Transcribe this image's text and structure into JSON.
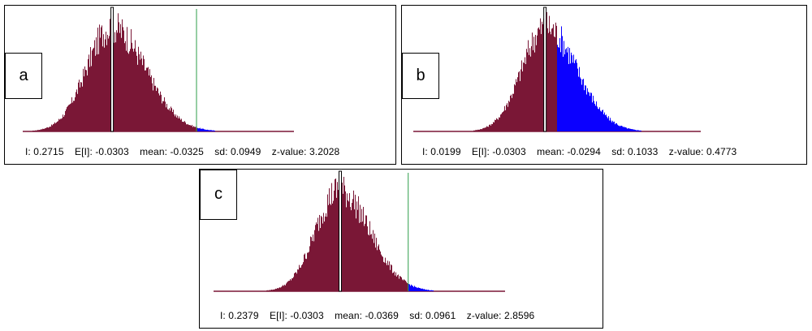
{
  "colors": {
    "below": "#7a1736",
    "above": "#0b00ff",
    "observed_line": "#2e9e4a",
    "expected_line": "#000000",
    "axis": "#7a1736"
  },
  "chart_data": [
    {
      "type": "bar",
      "panel": "a",
      "label": "a",
      "stats": {
        "I": "I: 0.2715",
        "E": "E[I]: -0.0303",
        "mean": "mean: -0.0325",
        "sd": "sd: 0.0949",
        "z": "z-value: 3.2028"
      },
      "I": 0.2715,
      "expected_I": -0.0303,
      "mean": -0.0325,
      "sd": 0.0949,
      "z_value": 3.2028,
      "xlim": [
        -0.35,
        0.62
      ]
    },
    {
      "type": "bar",
      "panel": "b",
      "label": "b",
      "stats": {
        "I": "I: 0.0199",
        "E": "E[I]: -0.0303",
        "mean": "mean: -0.0294",
        "sd": "sd: 0.1033",
        "z": "z-value: 0.4773"
      },
      "I": 0.0199,
      "expected_I": -0.0303,
      "mean": -0.0294,
      "sd": 0.1033,
      "z_value": 0.4773,
      "xlim": [
        -0.58,
        0.62
      ]
    },
    {
      "type": "bar",
      "panel": "c",
      "label": "c",
      "stats": {
        "I": "I: 0.2379",
        "E": "E[I]: -0.0303",
        "mean": "mean: -0.0369",
        "sd": "sd: 0.0961",
        "z": "z-value: 2.8596"
      },
      "I": 0.2379,
      "expected_I": -0.0303,
      "mean": -0.0369,
      "sd": 0.0961,
      "z_value": 2.8596,
      "xlim": [
        -0.53,
        0.62
      ]
    }
  ]
}
